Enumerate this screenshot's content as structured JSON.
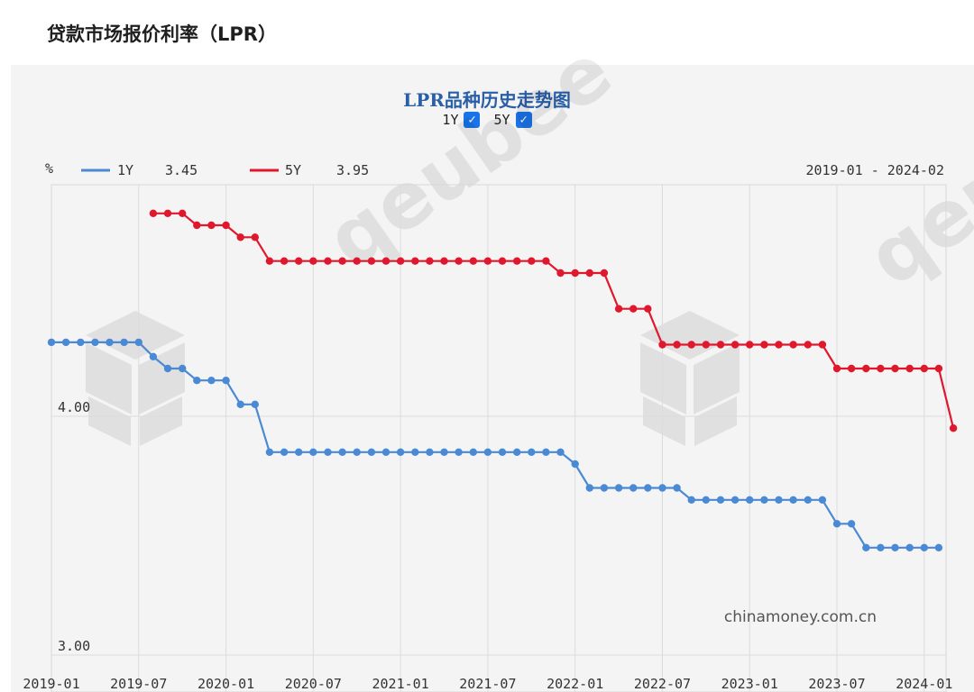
{
  "page_title": "贷款市场报价利率（LPR）",
  "chart_title": "LPR品种历史走势图",
  "toggles": [
    {
      "label": "1Y",
      "checked": true
    },
    {
      "label": "5Y",
      "checked": true
    }
  ],
  "date_range": "2019-01 - 2024-02",
  "watermark": "qeubee",
  "source_watermark": "chinamoney.com.cn",
  "chart_data": {
    "type": "line",
    "ylabel": "%",
    "ylim": [
      3.0,
      4.95
    ],
    "y_ticks": [
      "4.00",
      "3.00"
    ],
    "x_ticks": [
      "2019-01",
      "2019-07",
      "2020-01",
      "2020-07",
      "2021-01",
      "2021-07",
      "2022-01",
      "2022-07",
      "2023-01",
      "2023-07",
      "2024-01"
    ],
    "x_start": "2019-01",
    "series": [
      {
        "name": "1Y",
        "latest": "3.45",
        "color": "#4a8ad4",
        "values": [
          4.31,
          4.31,
          4.31,
          4.31,
          4.31,
          4.31,
          4.31,
          4.25,
          4.2,
          4.2,
          4.15,
          4.15,
          4.15,
          4.05,
          4.05,
          3.85,
          3.85,
          3.85,
          3.85,
          3.85,
          3.85,
          3.85,
          3.85,
          3.85,
          3.85,
          3.85,
          3.85,
          3.85,
          3.85,
          3.85,
          3.85,
          3.85,
          3.85,
          3.85,
          3.85,
          3.85,
          3.8,
          3.7,
          3.7,
          3.7,
          3.7,
          3.7,
          3.7,
          3.7,
          3.65,
          3.65,
          3.65,
          3.65,
          3.65,
          3.65,
          3.65,
          3.65,
          3.65,
          3.65,
          3.55,
          3.55,
          3.45,
          3.45,
          3.45,
          3.45,
          3.45,
          3.45
        ]
      },
      {
        "name": "5Y",
        "latest": "3.95",
        "color": "#e0182d",
        "x_offset": 7,
        "values": [
          4.85,
          4.85,
          4.85,
          4.8,
          4.8,
          4.8,
          4.75,
          4.75,
          4.65,
          4.65,
          4.65,
          4.65,
          4.65,
          4.65,
          4.65,
          4.65,
          4.65,
          4.65,
          4.65,
          4.65,
          4.65,
          4.65,
          4.65,
          4.65,
          4.65,
          4.65,
          4.65,
          4.65,
          4.6,
          4.6,
          4.6,
          4.6,
          4.45,
          4.45,
          4.45,
          4.3,
          4.3,
          4.3,
          4.3,
          4.3,
          4.3,
          4.3,
          4.3,
          4.3,
          4.3,
          4.3,
          4.3,
          4.2,
          4.2,
          4.2,
          4.2,
          4.2,
          4.2,
          4.2,
          4.2,
          3.95
        ]
      }
    ]
  }
}
